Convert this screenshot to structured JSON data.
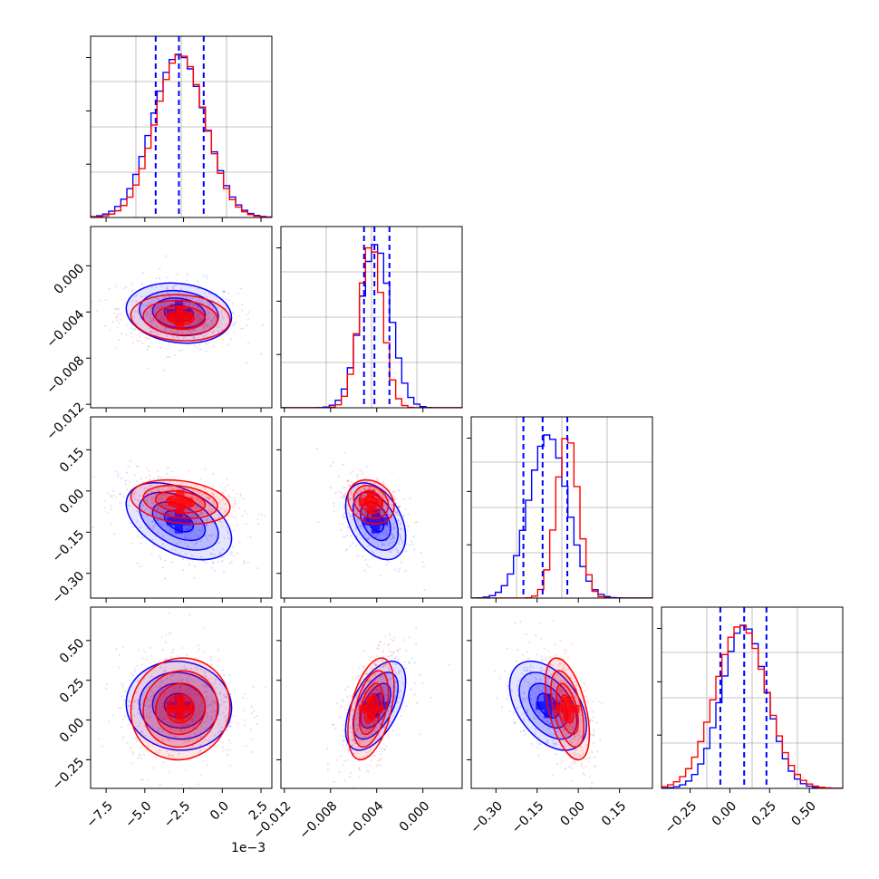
{
  "chart_data": {
    "type": "corner",
    "n_params": 4,
    "series": [
      {
        "name": "",
        "color": "#0000ff",
        "params": [
          {
            "mean": -2.8,
            "sd": 1.7
          },
          {
            "mean": -0.0041,
            "sd": 0.0013
          },
          {
            "mean": -0.11,
            "sd": 0.07
          },
          {
            "mean": 0.09,
            "sd": 0.14
          }
        ],
        "corr": [
          [
            1,
            -0.15,
            -0.45,
            -0.05
          ],
          [
            -0.15,
            1,
            -0.4,
            0.55
          ],
          [
            -0.45,
            -0.4,
            1,
            -0.45
          ],
          [
            -0.05,
            0.55,
            -0.45,
            1
          ]
        ]
      },
      {
        "name": "",
        "color": "#ff0000",
        "params": [
          {
            "mean": -2.7,
            "sd": 1.6
          },
          {
            "mean": -0.0045,
            "sd": 0.001
          },
          {
            "mean": -0.04,
            "sd": 0.04
          },
          {
            "mean": 0.07,
            "sd": 0.16
          }
        ],
        "corr": [
          [
            1,
            -0.1,
            -0.25,
            0.05
          ],
          [
            -0.1,
            1,
            -0.2,
            0.45
          ],
          [
            -0.25,
            -0.2,
            1,
            -0.5
          ],
          [
            0.05,
            0.45,
            -0.5,
            1
          ]
        ]
      }
    ],
    "quantile_lines": {
      "color": "#0000ff",
      "style": "dashed",
      "values": [
        [
          -4.3,
          -2.8,
          -1.2
        ],
        [
          -0.0051,
          -0.0042,
          -0.0029
        ],
        [
          -0.2,
          -0.13,
          -0.04
        ],
        [
          -0.06,
          0.09,
          0.23
        ]
      ]
    },
    "axes": [
      {
        "range": [
          -8.5,
          3.2
        ],
        "ticks": [
          "−7.5",
          "−5.0",
          "−2.5",
          "0.0",
          "2.5"
        ],
        "tick_values": [
          -7.5,
          -5.0,
          -2.5,
          0.0,
          2.5
        ],
        "offset_text": "1e−3"
      },
      {
        "range": [
          -0.0123,
          0.0034
        ],
        "ticks": [
          "−0.012",
          "−0.008",
          "−0.004",
          "0.000"
        ],
        "tick_values": [
          -0.012,
          -0.008,
          -0.004,
          0.0
        ]
      },
      {
        "range": [
          -0.39,
          0.27
        ],
        "ticks": [
          "−0.30",
          "−0.15",
          "0.00",
          "0.15"
        ],
        "tick_values": [
          -0.3,
          -0.15,
          0.0,
          0.15
        ]
      },
      {
        "range": [
          -0.43,
          0.71
        ],
        "ticks": [
          "−0.25",
          "0.00",
          "0.25",
          "0.50"
        ],
        "tick_values": [
          -0.25,
          0.0,
          0.25,
          0.5
        ]
      }
    ],
    "grid": true
  }
}
